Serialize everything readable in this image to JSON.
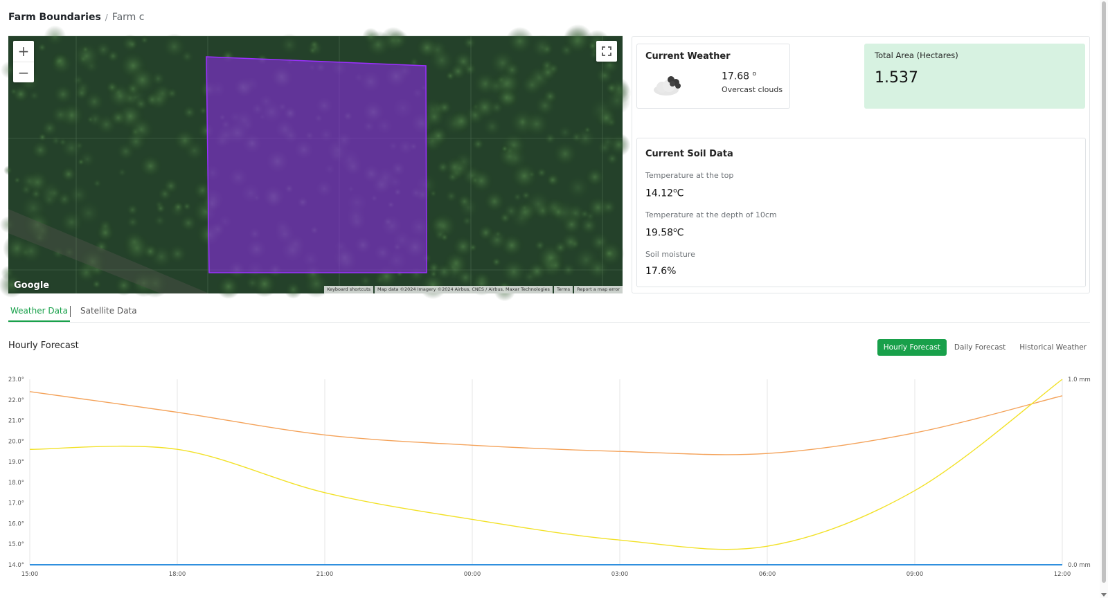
{
  "breadcrumb": {
    "root": "Farm Boundaries",
    "separator": "/",
    "current": "Farm c"
  },
  "map": {
    "zoom_in": "+",
    "zoom_out": "−",
    "logo": "Google",
    "attribution": [
      "Keyboard shortcuts",
      "Map data ©2024 Imagery ©2024 Airbus, CNES / Airbus, Maxar Technologies",
      "Terms",
      "Report a map error"
    ],
    "boundary_color": "#8a2be2",
    "icons": [
      "plus-icon",
      "minus-icon",
      "fullscreen-icon"
    ]
  },
  "weather": {
    "title": "Current Weather",
    "temp": "17.68",
    "temp_unit": "o",
    "description": "Overcast clouds",
    "icon": "overcast-clouds-icon"
  },
  "area": {
    "label": "Total Area (Hectares)",
    "value": "1.537",
    "color": "#d7f2e1"
  },
  "soil": {
    "title": "Current Soil Data",
    "items": [
      {
        "label": "Temperature at the top",
        "value": "14.12",
        "unit": "o",
        "unit_suffix": "C"
      },
      {
        "label": "Temperature at the depth of 10cm",
        "value": "19.58",
        "unit": "o",
        "unit_suffix": "C"
      },
      {
        "label": "Soil moisture",
        "value": "17.6%"
      }
    ]
  },
  "tabs": {
    "weather": "Weather Data",
    "satellite": "Satellite Data",
    "active": "Weather Data",
    "accent": "#18a04a"
  },
  "forecast": {
    "title": "Hourly Forecast",
    "buttons": [
      "Hourly Forecast",
      "Daily Forecast",
      "Historical Weather"
    ],
    "active_button": "Hourly Forecast"
  },
  "chart_data": {
    "type": "line",
    "x": [
      "15:00",
      "18:00",
      "21:00",
      "00:00",
      "03:00",
      "06:00",
      "09:00",
      "12:00"
    ],
    "y_left_ticks": [
      "14.0°",
      "15.0°",
      "16.0°",
      "17.0°",
      "18.0°",
      "19.0°",
      "20.0°",
      "21.0°",
      "22.0°",
      "23.0°"
    ],
    "y_right_ticks": [
      "0.0 mm",
      "1.0 mm"
    ],
    "ylim_left": [
      14,
      23
    ],
    "ylim_right": [
      0,
      1
    ],
    "grid": true,
    "series": [
      {
        "axis": "left",
        "color": "#f4a259",
        "values": [
          22.4,
          21.4,
          20.3,
          19.8,
          19.5,
          19.4,
          20.4,
          22.2
        ]
      },
      {
        "axis": "left",
        "color": "#f2e127",
        "values": [
          19.6,
          19.6,
          17.5,
          16.2,
          15.2,
          14.9,
          17.6,
          23.0
        ]
      },
      {
        "axis": "right",
        "color": "#2f8fde",
        "values": [
          0,
          0,
          0,
          0,
          0,
          0,
          0,
          0
        ]
      }
    ]
  }
}
